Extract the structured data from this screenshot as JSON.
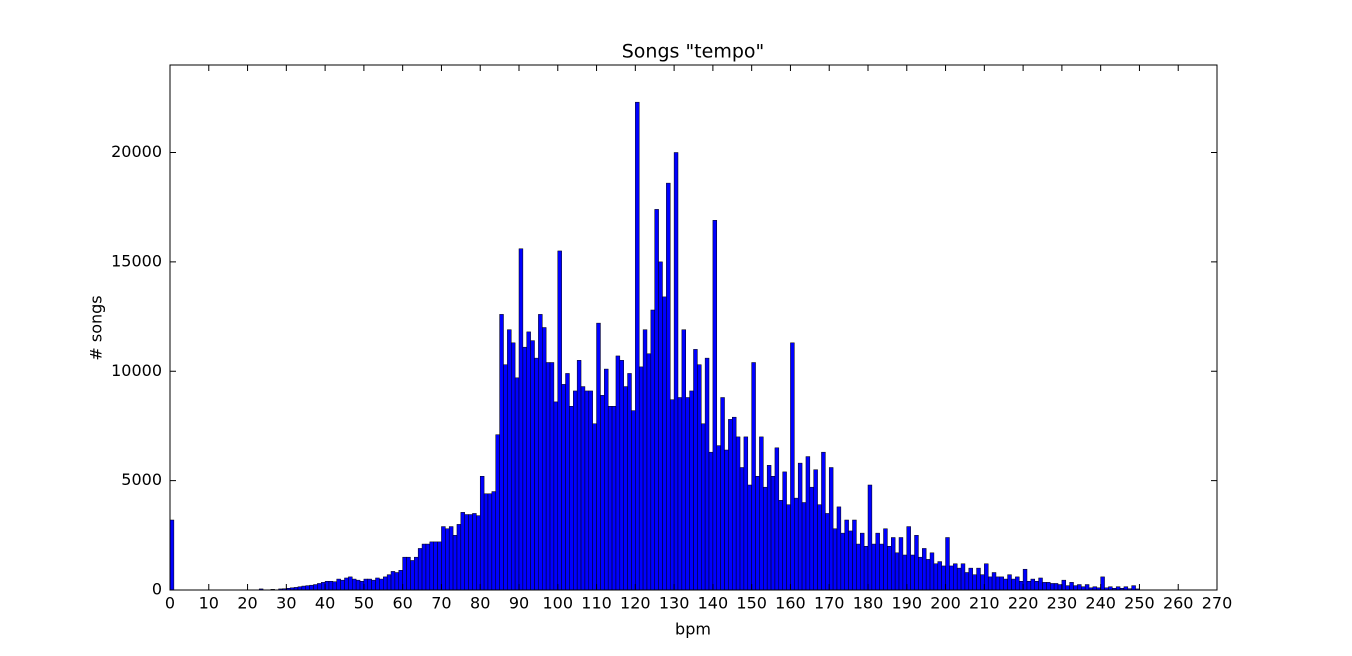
{
  "chart_data": {
    "type": "histogram",
    "title": "Songs \"tempo\"",
    "x_label": "bpm",
    "y_label": "# songs",
    "color": "#0000ff",
    "bins": [
      0,
      1,
      2,
      3,
      4,
      5,
      6,
      7,
      8,
      9,
      10,
      11,
      12,
      13,
      14,
      15,
      16,
      17,
      18,
      19,
      20,
      21,
      22,
      23,
      24,
      25,
      26,
      27,
      28,
      29,
      30,
      31,
      32,
      33,
      34,
      35,
      36,
      37,
      38,
      39,
      40,
      41,
      42,
      43,
      44,
      45,
      46,
      47,
      48,
      49,
      50,
      51,
      52,
      53,
      54,
      55,
      56,
      57,
      58,
      59,
      60,
      61,
      62,
      63,
      64,
      65,
      66,
      67,
      68,
      69,
      70,
      71,
      72,
      73,
      74,
      75,
      76,
      77,
      78,
      79,
      80,
      81,
      82,
      83,
      84,
      85,
      86,
      87,
      88,
      89,
      90,
      91,
      92,
      93,
      94,
      95,
      96,
      97,
      98,
      99,
      100,
      101,
      102,
      103,
      104,
      105,
      106,
      107,
      108,
      109,
      110,
      111,
      112,
      113,
      114,
      115,
      116,
      117,
      118,
      119,
      120,
      121,
      122,
      123,
      124,
      125,
      126,
      127,
      128,
      129,
      130,
      131,
      132,
      133,
      134,
      135,
      136,
      137,
      138,
      139,
      140,
      141,
      142,
      143,
      144,
      145,
      146,
      147,
      148,
      149,
      150,
      151,
      152,
      153,
      154,
      155,
      156,
      157,
      158,
      159,
      160,
      161,
      162,
      163,
      164,
      165,
      166,
      167,
      168,
      169,
      170,
      171,
      172,
      173,
      174,
      175,
      176,
      177,
      178,
      179,
      180,
      181,
      182,
      183,
      184,
      185,
      186,
      187,
      188,
      189,
      190,
      191,
      192,
      193,
      194,
      195,
      196,
      197,
      198,
      199,
      200,
      201,
      202,
      203,
      204,
      205,
      206,
      207,
      208,
      209,
      210,
      211,
      212,
      213,
      214,
      215,
      216,
      217,
      218,
      219,
      220,
      221,
      222,
      223,
      224,
      225,
      226,
      227,
      228,
      229,
      230,
      231,
      232,
      233,
      234,
      235,
      236,
      237,
      238,
      239,
      240,
      241,
      242,
      243,
      244,
      245,
      246,
      247,
      248,
      249,
      250
    ],
    "counts": [
      3200,
      0,
      0,
      0,
      0,
      0,
      0,
      0,
      0,
      0,
      0,
      0,
      0,
      0,
      0,
      0,
      0,
      0,
      0,
      0,
      0,
      0,
      0,
      50,
      0,
      0,
      30,
      0,
      50,
      60,
      80,
      100,
      120,
      150,
      180,
      200,
      220,
      250,
      300,
      350,
      400,
      400,
      380,
      500,
      450,
      550,
      600,
      500,
      450,
      400,
      500,
      500,
      450,
      550,
      500,
      600,
      700,
      850,
      800,
      900,
      1500,
      1500,
      1350,
      1500,
      1900,
      2100,
      2100,
      2200,
      2200,
      2200,
      2900,
      2800,
      2900,
      2500,
      3000,
      3550,
      3450,
      3450,
      3500,
      3400,
      5200,
      4400,
      4400,
      4500,
      7100,
      12600,
      10300,
      11900,
      11300,
      9700,
      15600,
      11100,
      11800,
      11400,
      10600,
      12600,
      12000,
      10400,
      10400,
      8600,
      15500,
      9400,
      9900,
      8400,
      9100,
      10500,
      9300,
      9100,
      9100,
      7600,
      12200,
      8900,
      10100,
      8400,
      8400,
      10700,
      10500,
      9300,
      9900,
      8200,
      22300,
      10200,
      11900,
      10800,
      12800,
      17400,
      15000,
      13400,
      18600,
      8700,
      20000,
      8800,
      11900,
      8800,
      9100,
      11000,
      10300,
      7600,
      10600,
      6300,
      16900,
      6600,
      8800,
      6400,
      7800,
      7900,
      7000,
      5600,
      7000,
      4800,
      10400,
      5200,
      7000,
      4700,
      5700,
      5200,
      6500,
      4100,
      5400,
      3900,
      11300,
      4200,
      5800,
      4000,
      6100,
      4700,
      5500,
      3900,
      6300,
      3500,
      5600,
      2800,
      3800,
      2600,
      3200,
      2700,
      3200,
      2100,
      2600,
      2000,
      4800,
      2100,
      2600,
      2100,
      2800,
      2000,
      2400,
      1700,
      2400,
      1600,
      2900,
      1600,
      2500,
      1500,
      1900,
      1400,
      1700,
      1200,
      1300,
      1100,
      2400,
      1100,
      1200,
      1000,
      1200,
      800,
      1000,
      700,
      1000,
      700,
      1200,
      600,
      800,
      600,
      600,
      500,
      700,
      500,
      600,
      400,
      950,
      400,
      500,
      400,
      550,
      350,
      350,
      300,
      300,
      250,
      450,
      200,
      350,
      200,
      250,
      150,
      250,
      100,
      150,
      100,
      600,
      100,
      150,
      80,
      150,
      80,
      150,
      60,
      200,
      50
    ],
    "xlim": [
      0,
      270
    ],
    "xticks": [
      0,
      10,
      20,
      30,
      40,
      50,
      60,
      70,
      80,
      90,
      100,
      110,
      120,
      130,
      140,
      150,
      160,
      170,
      180,
      190,
      200,
      210,
      220,
      230,
      240,
      250,
      260,
      270
    ],
    "ylim": [
      0,
      24000
    ],
    "yticks": [
      0,
      5000,
      10000,
      15000,
      20000
    ]
  }
}
